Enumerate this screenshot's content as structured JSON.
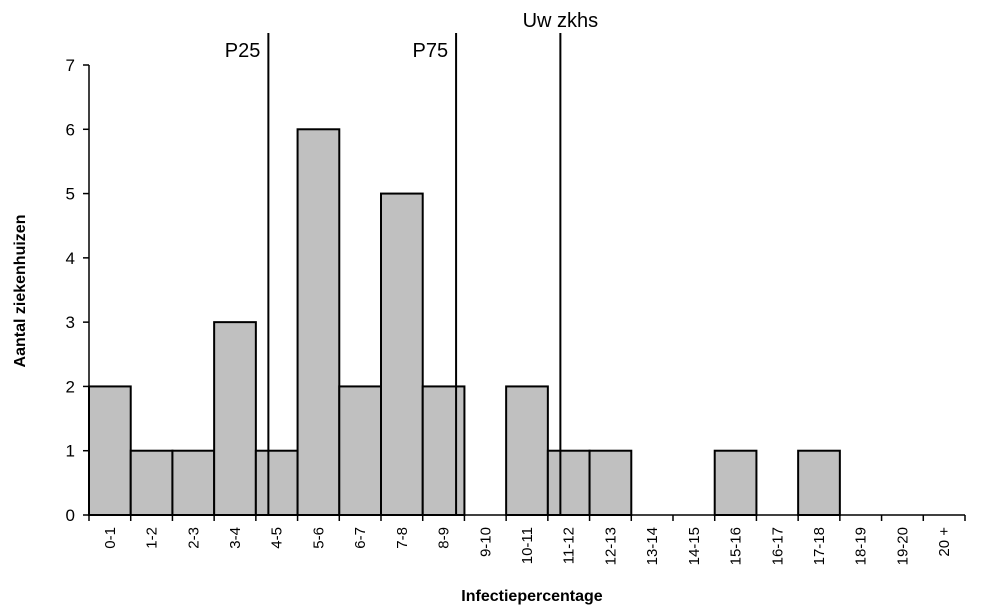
{
  "chart_data": {
    "type": "bar",
    "xlabel": "Infectiepercentage",
    "ylabel": "Aantal ziekenhuizen",
    "ylim": [
      0,
      7
    ],
    "yticks": [
      0,
      1,
      2,
      3,
      4,
      5,
      6,
      7
    ],
    "grid": false,
    "categories": [
      "0-1",
      "1-2",
      "2-3",
      "3-4",
      "4-5",
      "5-6",
      "6-7",
      "7-8",
      "8-9",
      "9-10",
      "10-11",
      "11-12",
      "12-13",
      "13-14",
      "14-15",
      "15-16",
      "16-17",
      "17-18",
      "18-19",
      "19-20",
      "20 +"
    ],
    "values": [
      2,
      1,
      1,
      3,
      1,
      6,
      2,
      5,
      2,
      0,
      2,
      1,
      1,
      0,
      0,
      1,
      0,
      1,
      0,
      0,
      0
    ],
    "colors": {
      "bar_fill": "#c0c0c0",
      "bar_stroke": "#000000"
    },
    "reference_lines": [
      {
        "label": "P25",
        "x": 4.3
      },
      {
        "label": "P75",
        "x": 8.8
      },
      {
        "label": "Uw zkhs",
        "x": 11.3
      }
    ]
  }
}
